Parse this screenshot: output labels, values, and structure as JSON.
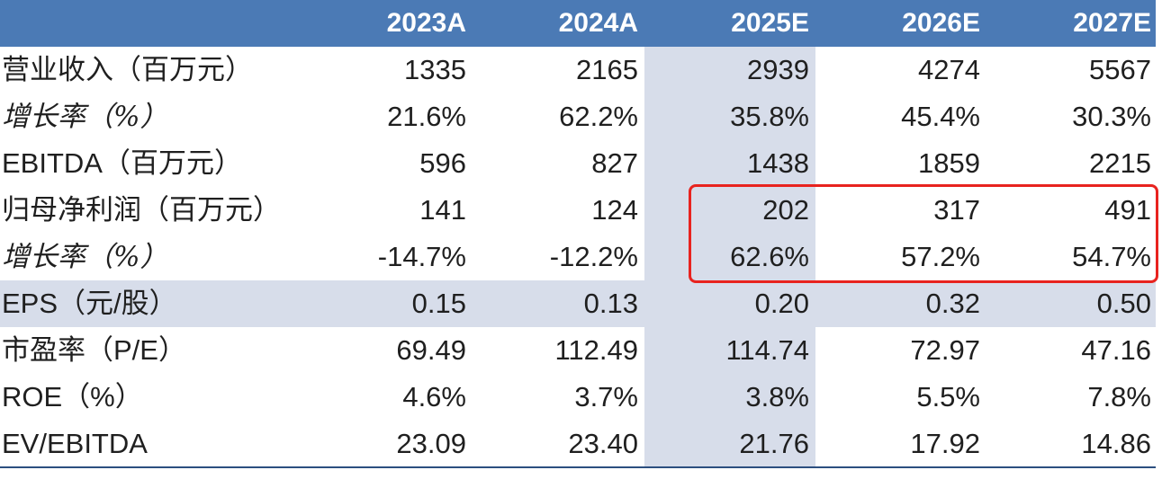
{
  "header": {
    "label": "",
    "years": [
      "2023A",
      "2024A",
      "2025E",
      "2026E",
      "2027E"
    ]
  },
  "rows": [
    {
      "label": "营业收入（百万元）",
      "italic": false,
      "values": [
        "1335",
        "2165",
        "2939",
        "4274",
        "5567"
      ]
    },
    {
      "label": "增长率（%）",
      "italic": true,
      "values": [
        "21.6%",
        "62.2%",
        "35.8%",
        "45.4%",
        "30.3%"
      ]
    },
    {
      "label": "EBITDA（百万元）",
      "italic": false,
      "values": [
        "596",
        "827",
        "1438",
        "1859",
        "2215"
      ]
    },
    {
      "label": "归母净利润（百万元）",
      "italic": false,
      "values": [
        "141",
        "124",
        "202",
        "317",
        "491"
      ]
    },
    {
      "label": "增长率（%）",
      "italic": true,
      "values": [
        "-14.7%",
        "-12.2%",
        "62.6%",
        "57.2%",
        "54.7%"
      ]
    },
    {
      "label": "EPS（元/股）",
      "italic": false,
      "values": [
        "0.15",
        "0.13",
        "0.20",
        "0.32",
        "0.50"
      ]
    },
    {
      "label": "市盈率（P/E）",
      "italic": false,
      "values": [
        "69.49",
        "112.49",
        "114.74",
        "72.97",
        "47.16"
      ]
    },
    {
      "label": "ROE（%）",
      "italic": false,
      "values": [
        "4.6%",
        "3.7%",
        "3.8%",
        "5.5%",
        "7.8%"
      ]
    },
    {
      "label": "EV/EBITDA",
      "italic": false,
      "values": [
        "23.09",
        "23.40",
        "21.76",
        "17.92",
        "14.86"
      ]
    }
  ],
  "colors": {
    "header_bg": "#4b7ab5",
    "shade": "#d7ddea",
    "highlight": "#e8231f",
    "rule": "#2c4f7f"
  }
}
